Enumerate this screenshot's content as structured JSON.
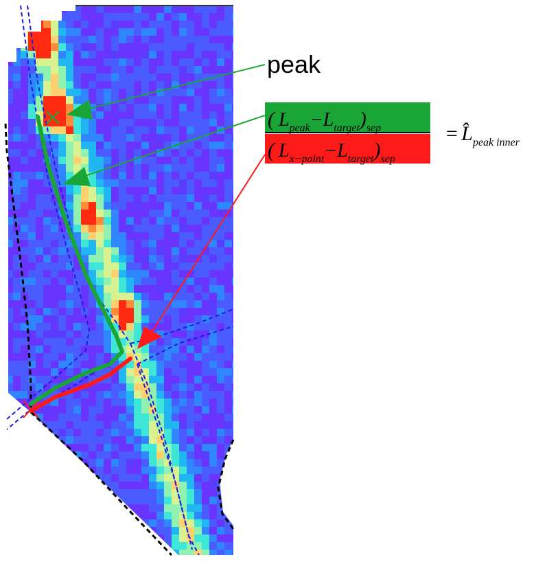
{
  "colors": {
    "green": "#1aa636",
    "red": "#ff1a1a",
    "boundary": "#000000",
    "separatrix": "#1c1cdc",
    "heat_low": "#6a34ff",
    "heat_high": "#ff2a10"
  },
  "annotations": {
    "peak_label": "peak",
    "numerator": {
      "L1": "L",
      "sub1": "peak",
      "L2": "L",
      "sub2": "target",
      "outer_sub": "sep"
    },
    "denominator": {
      "L1": "L",
      "sub1": "x−point",
      "L2": "L",
      "sub2": "target",
      "outer_sub": "sep"
    },
    "result": {
      "equals": "=",
      "symbol": "L̂",
      "sub": "peak inner"
    }
  }
}
